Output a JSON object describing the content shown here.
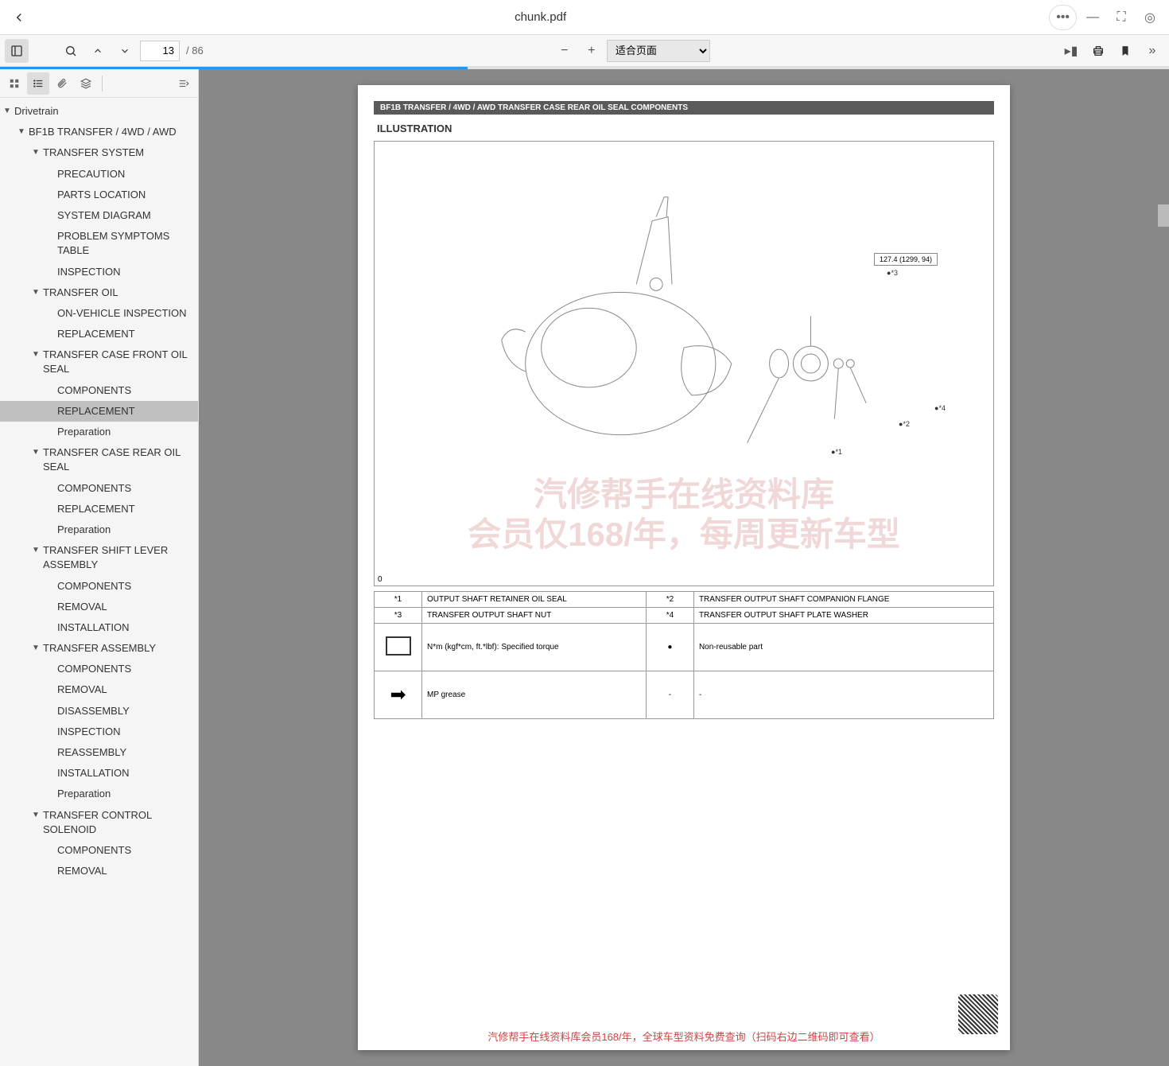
{
  "titlebar": {
    "title": "chunk.pdf"
  },
  "toolbar": {
    "current_page": "13",
    "total_pages": "/ 86",
    "zoom": "适合页面"
  },
  "outline": [
    {
      "lvl": 0,
      "exp": true,
      "label": "Drivetrain"
    },
    {
      "lvl": 1,
      "exp": true,
      "label": "BF1B TRANSFER / 4WD / AWD"
    },
    {
      "lvl": 2,
      "exp": true,
      "label": "TRANSFER SYSTEM"
    },
    {
      "lvl": 3,
      "label": "PRECAUTION"
    },
    {
      "lvl": 3,
      "label": "PARTS LOCATION"
    },
    {
      "lvl": 3,
      "label": "SYSTEM DIAGRAM"
    },
    {
      "lvl": 3,
      "label": "PROBLEM SYMPTOMS TABLE"
    },
    {
      "lvl": 3,
      "label": "INSPECTION"
    },
    {
      "lvl": 2,
      "exp": true,
      "label": "TRANSFER OIL"
    },
    {
      "lvl": 3,
      "label": "ON-VEHICLE INSPECTION"
    },
    {
      "lvl": 3,
      "label": "REPLACEMENT"
    },
    {
      "lvl": 2,
      "exp": true,
      "label": "TRANSFER CASE FRONT OIL SEAL"
    },
    {
      "lvl": 3,
      "label": "COMPONENTS"
    },
    {
      "lvl": 3,
      "label": "REPLACEMENT",
      "selected": true
    },
    {
      "lvl": 3,
      "label": "Preparation"
    },
    {
      "lvl": 2,
      "exp": true,
      "label": "TRANSFER CASE REAR OIL SEAL"
    },
    {
      "lvl": 3,
      "label": "COMPONENTS"
    },
    {
      "lvl": 3,
      "label": "REPLACEMENT"
    },
    {
      "lvl": 3,
      "label": "Preparation"
    },
    {
      "lvl": 2,
      "exp": true,
      "label": "TRANSFER SHIFT LEVER ASSEMBLY"
    },
    {
      "lvl": 3,
      "label": "COMPONENTS"
    },
    {
      "lvl": 3,
      "label": "REMOVAL"
    },
    {
      "lvl": 3,
      "label": "INSTALLATION"
    },
    {
      "lvl": 2,
      "exp": true,
      "label": "TRANSFER ASSEMBLY"
    },
    {
      "lvl": 3,
      "label": "COMPONENTS"
    },
    {
      "lvl": 3,
      "label": "REMOVAL"
    },
    {
      "lvl": 3,
      "label": "DISASSEMBLY"
    },
    {
      "lvl": 3,
      "label": "INSPECTION"
    },
    {
      "lvl": 3,
      "label": "REASSEMBLY"
    },
    {
      "lvl": 3,
      "label": "INSTALLATION"
    },
    {
      "lvl": 3,
      "label": "Preparation"
    },
    {
      "lvl": 2,
      "exp": true,
      "label": "TRANSFER CONTROL SOLENOID"
    },
    {
      "lvl": 3,
      "label": "COMPONENTS"
    },
    {
      "lvl": 3,
      "label": "REMOVAL"
    }
  ],
  "doc": {
    "header": "BF1B TRANSFER / 4WD / AWD  TRANSFER CASE REAR OIL SEAL  COMPONENTS",
    "subtitle": "ILLUSTRATION",
    "torque": "127.4 (1299, 94)",
    "callouts": {
      "c1": "●*1",
      "c2": "●*2",
      "c3": "●*3",
      "c4": "●*4"
    },
    "watermark1": "汽修帮手在线资料库",
    "watermark2": "会员仅168/年，每周更新车型",
    "page_num": "0",
    "table": {
      "r1": {
        "k1": "*1",
        "v1": "OUTPUT SHAFT RETAINER OIL SEAL",
        "k2": "*2",
        "v2": "TRANSFER OUTPUT SHAFT COMPANION FLANGE"
      },
      "r2": {
        "k1": "*3",
        "v1": "TRANSFER OUTPUT SHAFT NUT",
        "k2": "*4",
        "v2": "TRANSFER OUTPUT SHAFT PLATE WASHER"
      },
      "r3": {
        "v1": "N*m (kgf*cm, ft.*lbf): Specified torque",
        "k2": "●",
        "v2": "Non-reusable part"
      },
      "r4": {
        "v1": "MP grease",
        "k2": "-",
        "v2": "-"
      }
    },
    "footer": "汽修帮手在线资料库会员168/年，全球车型资料免费查询（扫码右边二维码即可查看）"
  },
  "colors": {
    "accent": "#2196f3",
    "sidebar_bg": "#f5f5f5",
    "selected": "#c0c0c0"
  }
}
